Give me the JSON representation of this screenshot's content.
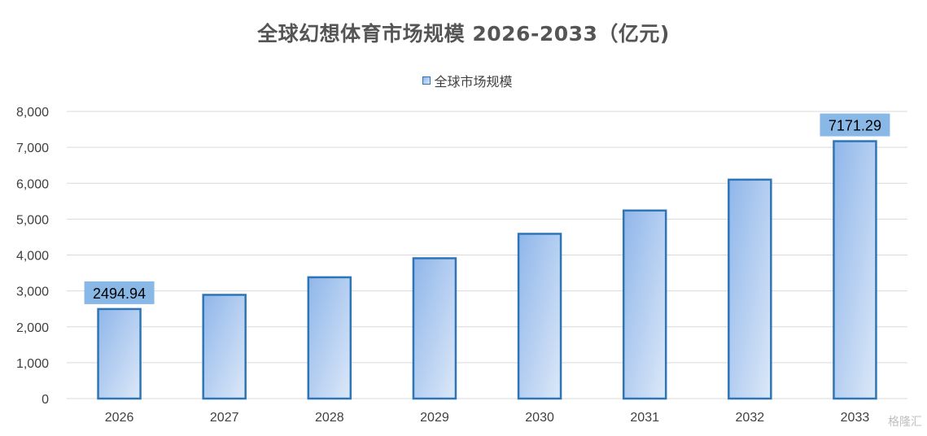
{
  "chart_data": {
    "type": "bar",
    "title": "全球幻想体育市场规模 2026-2033（亿元)",
    "legend": "全球市场规模",
    "legend_position": "top",
    "categories": [
      "2026",
      "2027",
      "2028",
      "2029",
      "2030",
      "2031",
      "2032",
      "2033"
    ],
    "series": [
      {
        "name": "全球市场规模",
        "values": [
          2494.94,
          2890,
          3380,
          3910,
          4590,
          5240,
          6100,
          7171.29
        ]
      }
    ],
    "data_labels": {
      "0": "2494.94",
      "7": "7171.29"
    },
    "ylim": [
      0,
      8000
    ],
    "yticks": [
      "0",
      "1,000",
      "2,000",
      "3,000",
      "4,000",
      "5,000",
      "6,000",
      "7,000",
      "8,000"
    ],
    "grid": true,
    "colors": {
      "bar_border": "#2e75b6",
      "bar_fill_top": "#8fb6ea",
      "bar_fill_bottom": "#dce8f8",
      "label_box": "#8ab8e6",
      "grid": "#d9d9d9"
    }
  },
  "watermark": "格隆汇"
}
